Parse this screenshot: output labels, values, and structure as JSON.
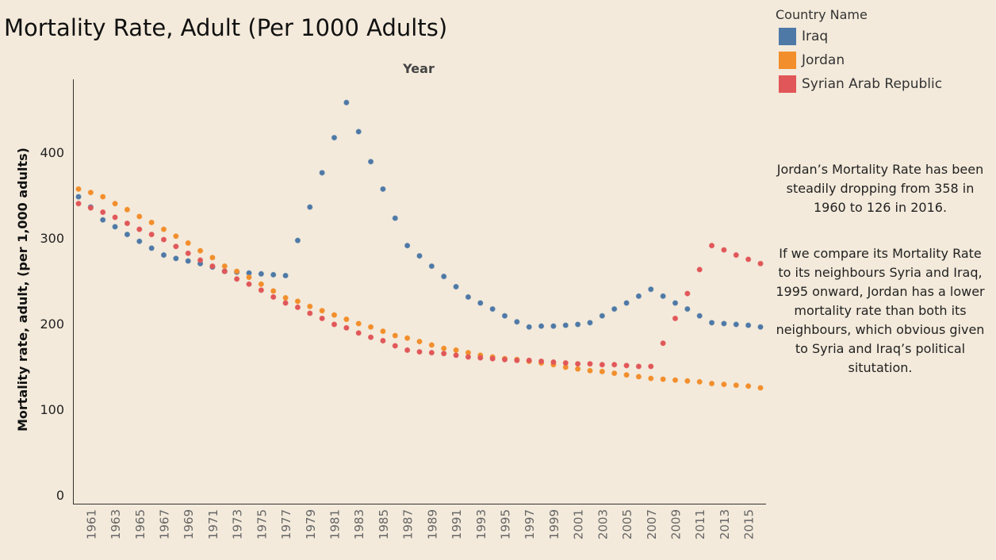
{
  "title": "Mortality Rate, Adult (Per 1000 Adults)",
  "legend": {
    "title": "Country Name",
    "items": [
      {
        "label": "Iraq",
        "color": "#4e79a7"
      },
      {
        "label": "Jordan",
        "color": "#f28e2b"
      },
      {
        "label": "Syrian Arab Republic",
        "color": "#e15759"
      }
    ]
  },
  "annotations": {
    "note1": "Jordan’s Mortality Rate has been steadily dropping from 358 in 1960 to 126 in 2016.",
    "note2": "If we compare its Mortality Rate to its neighbours Syria and Iraq, 1995 onward, Jordan has a lower mortality rate than both its neighbours, which obvious given to Syria and Iraq’s political situtation."
  },
  "chart_data": {
    "type": "scatter",
    "title": "Mortality Rate, Adult (Per 1000 Adults)",
    "xlabel": "Year",
    "ylabel": "Mortality rate, adult, (per 1,000 adults)",
    "ylim": [
      0,
      470
    ],
    "xlim": [
      1960,
      2016
    ],
    "yticks": [
      0,
      100,
      200,
      300,
      400
    ],
    "xticks": [
      1961,
      1963,
      1965,
      1967,
      1969,
      1971,
      1973,
      1975,
      1977,
      1979,
      1981,
      1983,
      1985,
      1987,
      1989,
      1991,
      1993,
      1995,
      1997,
      1999,
      2001,
      2003,
      2005,
      2007,
      2009,
      2011,
      2013,
      2015
    ],
    "x": [
      1960,
      1961,
      1962,
      1963,
      1964,
      1965,
      1966,
      1967,
      1968,
      1969,
      1970,
      1971,
      1972,
      1973,
      1974,
      1975,
      1976,
      1977,
      1978,
      1979,
      1980,
      1981,
      1982,
      1983,
      1984,
      1985,
      1986,
      1987,
      1988,
      1989,
      1990,
      1991,
      1992,
      1993,
      1994,
      1995,
      1996,
      1997,
      1998,
      1999,
      2000,
      2001,
      2002,
      2003,
      2004,
      2005,
      2006,
      2007,
      2008,
      2009,
      2010,
      2011,
      2012,
      2013,
      2014,
      2015,
      2016
    ],
    "series": [
      {
        "name": "Iraq",
        "color": "#4e79a7",
        "values": [
          349,
          337,
          322,
          314,
          305,
          297,
          289,
          281,
          277,
          274,
          271,
          267,
          262,
          261,
          260,
          259,
          258,
          257,
          298,
          337,
          377,
          418,
          459,
          425,
          390,
          358,
          324,
          292,
          280,
          268,
          256,
          244,
          232,
          225,
          218,
          210,
          203,
          197,
          198,
          198,
          199,
          200,
          202,
          210,
          218,
          225,
          233,
          241,
          233,
          225,
          218,
          210,
          202,
          201,
          200,
          199,
          197
        ]
      },
      {
        "name": "Jordan",
        "color": "#f28e2b",
        "values": [
          358,
          354,
          349,
          341,
          334,
          326,
          319,
          311,
          303,
          295,
          286,
          278,
          268,
          262,
          255,
          247,
          239,
          231,
          227,
          221,
          216,
          211,
          206,
          201,
          197,
          192,
          187,
          184,
          180,
          176,
          172,
          170,
          167,
          164,
          162,
          160,
          159,
          157,
          155,
          153,
          150,
          148,
          146,
          145,
          143,
          141,
          139,
          137,
          136,
          135,
          134,
          133,
          131,
          130,
          129,
          128,
          126
        ]
      },
      {
        "name": "Syrian Arab Republic",
        "color": "#e15759",
        "values": [
          341,
          336,
          331,
          325,
          318,
          311,
          305,
          299,
          291,
          283,
          275,
          268,
          262,
          253,
          247,
          240,
          232,
          225,
          220,
          213,
          207,
          200,
          196,
          190,
          185,
          181,
          175,
          170,
          168,
          167,
          166,
          164,
          162,
          161,
          160,
          159,
          158,
          158,
          157,
          156,
          155,
          154,
          154,
          153,
          153,
          152,
          151,
          151,
          178,
          207,
          236,
          264,
          292,
          287,
          281,
          276,
          271
        ]
      }
    ]
  }
}
